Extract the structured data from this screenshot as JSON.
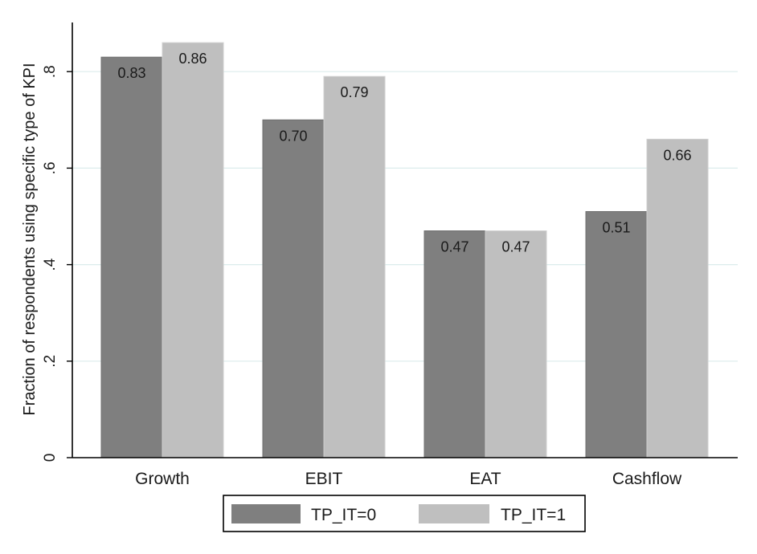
{
  "chart_data": {
    "type": "bar",
    "categories": [
      "Growth",
      "EBIT",
      "EAT",
      "Cashflow"
    ],
    "series": [
      {
        "name": "TP_IT=0",
        "values": [
          0.83,
          0.7,
          0.47,
          0.51
        ],
        "labels": [
          "0.83",
          "0.70",
          "0.47",
          "0.51"
        ],
        "color": "#7f7f7f"
      },
      {
        "name": "TP_IT=1",
        "values": [
          0.86,
          0.79,
          0.47,
          0.66
        ],
        "labels": [
          "0.86",
          "0.79",
          "0.47",
          "0.66"
        ],
        "color": "#bfbfbf"
      }
    ],
    "title": "",
    "xlabel": "",
    "ylabel": "Fraction of respondents using specific type of KPI",
    "ylim": [
      0,
      0.9
    ],
    "yticks": [
      0,
      0.2,
      0.4,
      0.6,
      0.8
    ],
    "ytick_labels": [
      "0",
      ".2",
      ".4",
      ".6",
      ".8"
    ],
    "grid": true,
    "gridline_color": "#dcecec",
    "legend_position": "bottom-center"
  }
}
